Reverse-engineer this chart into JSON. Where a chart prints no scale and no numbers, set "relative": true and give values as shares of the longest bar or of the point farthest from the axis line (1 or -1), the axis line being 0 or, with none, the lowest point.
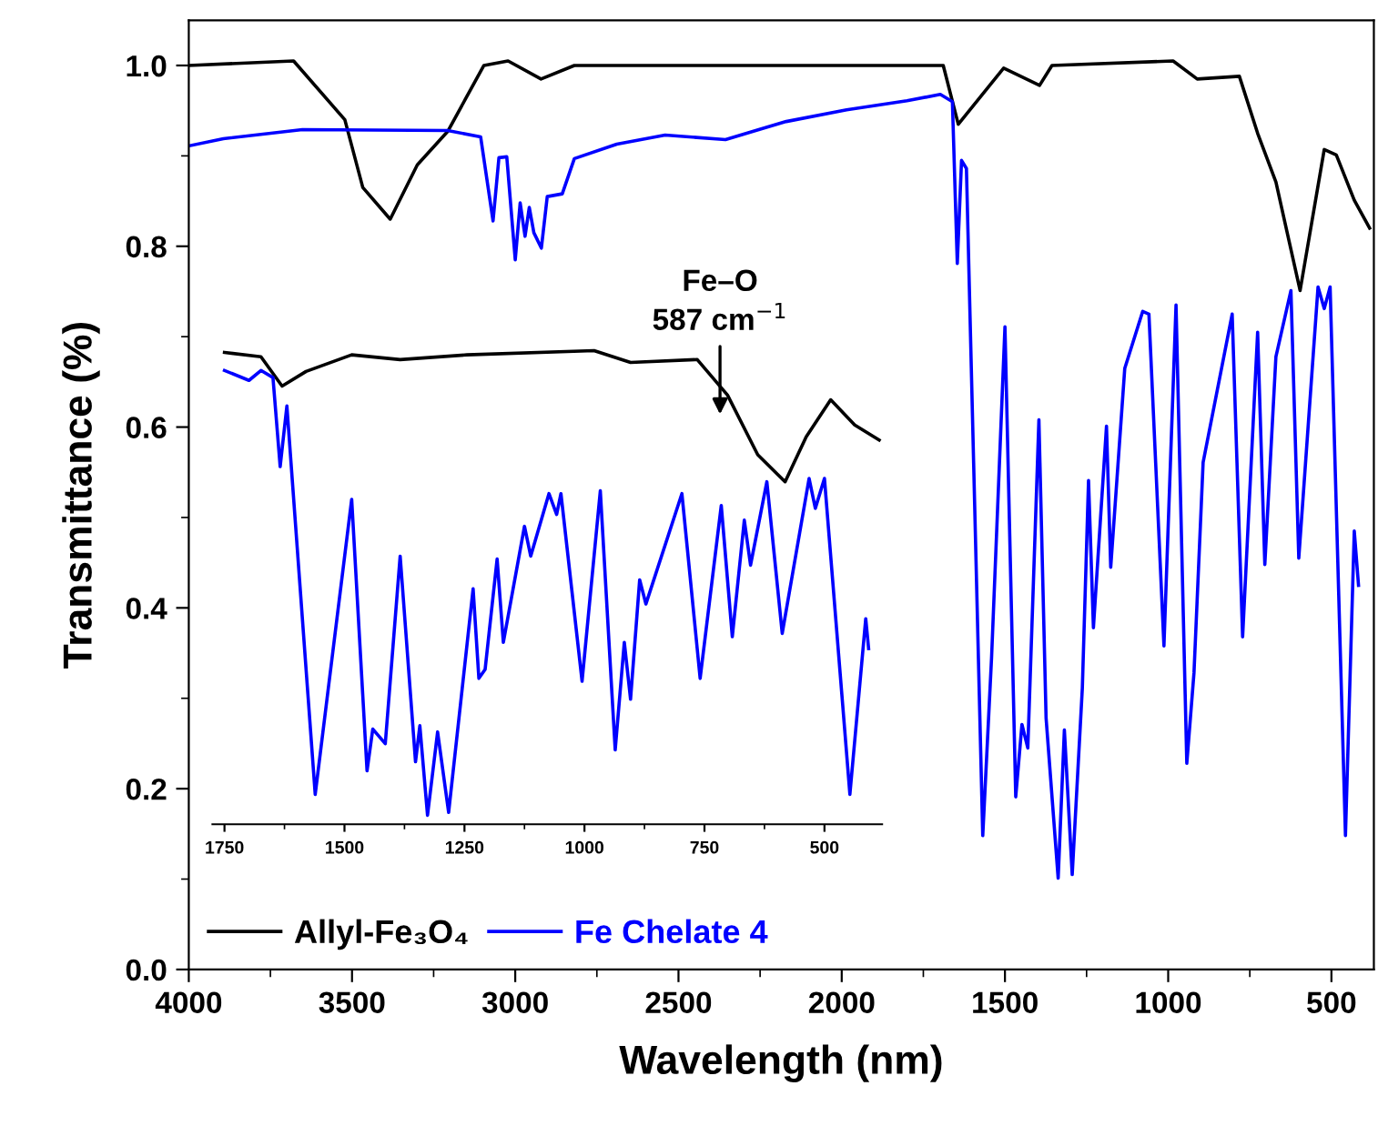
{
  "chart_data": [
    {
      "type": "line",
      "xlabel": "Wavelength (nm)",
      "ylabel": "Transmittance (%)",
      "xlim": [
        4000,
        370
      ],
      "ylim": [
        0,
        1.05
      ],
      "xticks": [
        4000,
        {
          "value": 3750,
          "label": null
        },
        3500,
        {
          "value": 3250,
          "label": null
        },
        3000,
        {
          "value": 2750,
          "label": null
        },
        2500,
        {
          "value": 2250,
          "label": null
        },
        2000,
        {
          "value": 1750,
          "label": null
        },
        1500,
        {
          "value": 1250,
          "label": null
        },
        1000,
        {
          "value": 750,
          "label": null
        },
        500
      ],
      "yticks": [
        {
          "value": 0,
          "label": "0.0"
        },
        {
          "value": 0.1,
          "label": null
        },
        0.2,
        {
          "value": 0.3,
          "label": null
        },
        0.4,
        {
          "value": 0.5,
          "label": null
        },
        0.6,
        {
          "value": 0.7,
          "label": null
        },
        0.8,
        {
          "value": 0.9,
          "label": null
        },
        {
          "value": 1,
          "label": "1.0"
        }
      ],
      "legend": "bottom left",
      "grid": false,
      "line_style": "solid",
      "series": [
        {
          "name": "Allyl-Fe₃O₄",
          "color": "#000000",
          "x": [
            4000,
            3679,
            3522,
            3467,
            3383,
            3300,
            3207,
            3096,
            3022,
            2921,
            2819,
            1689,
            1643,
            1504,
            1394,
            1356,
            985,
            911,
            782,
            726,
            670,
            596,
            522,
            485,
            430,
            383
          ],
          "values": [
            1.0,
            1.005,
            0.94,
            0.865,
            0.83,
            0.89,
            0.927,
            1.0,
            1.005,
            0.985,
            1.0,
            1.0,
            0.935,
            0.997,
            0.978,
            1.0,
            1.005,
            0.985,
            0.988,
            0.925,
            0.871,
            0.751,
            0.907,
            0.901,
            0.851,
            0.82
          ]
        },
        {
          "name": "Fe Chelate 4",
          "color": "#0000ff",
          "x": [
            4000,
            3894,
            3652,
            3207,
            3106,
            3068,
            3050,
            3026,
            3000,
            2985,
            2970,
            2957,
            2943,
            2920,
            2902,
            2856,
            2819,
            2689,
            2541,
            2356,
            2254,
            2170,
            1985,
            1800,
            1698,
            1661,
            1646,
            1633,
            1618,
            1568,
            1541,
            1500,
            1467,
            1448,
            1430,
            1396,
            1374,
            1337,
            1318,
            1294,
            1263,
            1244,
            1229,
            1189,
            1176,
            1133,
            1078,
            1059,
            1013,
            976,
            943,
            921,
            893,
            804,
            772,
            726,
            704,
            670,
            624,
            600,
            541,
            522,
            504,
            457,
            430,
            417
          ],
          "values": [
            0.911,
            0.919,
            0.929,
            0.928,
            0.921,
            0.828,
            0.898,
            0.899,
            0.785,
            0.848,
            0.811,
            0.843,
            0.815,
            0.798,
            0.855,
            0.858,
            0.897,
            0.913,
            0.923,
            0.918,
            0.929,
            0.938,
            0.951,
            0.961,
            0.968,
            0.96,
            0.781,
            0.895,
            0.886,
            0.148,
            0.345,
            0.711,
            0.191,
            0.271,
            0.245,
            0.608,
            0.278,
            0.101,
            0.265,
            0.105,
            0.311,
            0.541,
            0.378,
            0.601,
            0.445,
            0.665,
            0.728,
            0.725,
            0.358,
            0.735,
            0.228,
            0.328,
            0.561,
            0.725,
            0.368,
            0.705,
            0.448,
            0.678,
            0.751,
            0.455,
            0.755,
            0.731,
            0.755,
            0.148,
            0.485,
            0.425
          ]
        }
      ]
    },
    {
      "type": "line",
      "relative": true,
      "tick_labels": "x",
      "xlim": [
        1775,
        380
      ],
      "xticks": [
        1750,
        {
          "value": 1625,
          "label": null
        },
        1500,
        {
          "value": 1375,
          "label": null
        },
        1250,
        {
          "value": 1125,
          "label": null
        },
        1000,
        {
          "value": 875,
          "label": null
        },
        750,
        {
          "value": 625,
          "label": null
        },
        500
      ],
      "line_style": "solid",
      "annotations": [
        "Fe–O\n587 cm$^{−1}$"
      ],
      "series": [
        {
          "color": "#000000",
          "x": [
            1750,
            1674,
            1630,
            1580,
            1485,
            1384,
            1245,
            980,
            904,
            765,
            702,
            639,
            582,
            538,
            487,
            437,
            386
          ],
          "values": [
            0.996,
            0.987,
            0.925,
            0.956,
            0.991,
            0.981,
            0.991,
            1.0,
            0.975,
            0.981,
            0.906,
            0.78,
            0.723,
            0.818,
            0.896,
            0.843,
            0.811
          ]
        },
        {
          "color": "#0000ff",
          "x": [
            1750,
            1699,
            1674,
            1649,
            1634,
            1620,
            1561,
            1485,
            1453,
            1441,
            1415,
            1384,
            1352,
            1343,
            1327,
            1306,
            1283,
            1232,
            1220,
            1207,
            1182,
            1169,
            1125,
            1112,
            1074,
            1058,
            1049,
            1005,
            967,
            936,
            917,
            904,
            885,
            872,
            797,
            759,
            715,
            692,
            667,
            654,
            620,
            588,
            532,
            519,
            500,
            447,
            414,
            408
          ],
          "values": [
            0.958,
            0.937,
            0.958,
            0.943,
            0.755,
            0.883,
            0.063,
            0.686,
            0.113,
            0.201,
            0.17,
            0.566,
            0.132,
            0.208,
            0.019,
            0.195,
            0.025,
            0.497,
            0.308,
            0.327,
            0.56,
            0.384,
            0.629,
            0.566,
            0.698,
            0.654,
            0.698,
            0.302,
            0.704,
            0.157,
            0.384,
            0.264,
            0.516,
            0.465,
            0.698,
            0.308,
            0.673,
            0.396,
            0.642,
            0.547,
            0.723,
            0.403,
            0.73,
            0.667,
            0.73,
            0.063,
            0.434,
            0.371
          ]
        }
      ]
    }
  ]
}
